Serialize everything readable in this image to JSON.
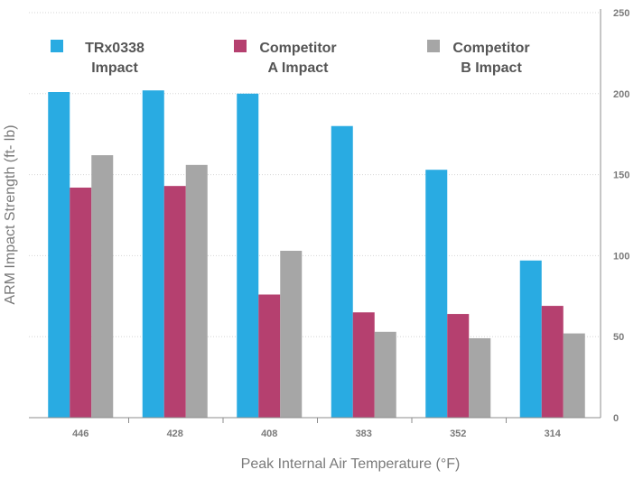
{
  "chart_data": {
    "type": "bar",
    "title": "",
    "xlabel": "Peak Internal Air Temperature (°F)",
    "ylabel": "ARM Impact Strength (ft- lb)",
    "ylim": [
      0,
      250
    ],
    "yticks": [
      0,
      50,
      100,
      150,
      200,
      250
    ],
    "grid": true,
    "legend_position": "top",
    "categories": [
      "446",
      "428",
      "408",
      "383",
      "352",
      "314"
    ],
    "series": [
      {
        "name": "TRx0338 Impact",
        "legend_lines": [
          "TRx0338",
          "Impact"
        ],
        "color": "#29abe2",
        "values": [
          201,
          202,
          200,
          180,
          153,
          97
        ]
      },
      {
        "name": "Competitor A Impact",
        "legend_lines": [
          "Competitor",
          "A Impact"
        ],
        "color": "#b5406f",
        "values": [
          142,
          143,
          76,
          65,
          64,
          69
        ]
      },
      {
        "name": "Competitor B Impact",
        "legend_lines": [
          "Competitor",
          "B Impact"
        ],
        "color": "#a6a6a6",
        "values": [
          162,
          156,
          103,
          53,
          49,
          52
        ]
      }
    ]
  }
}
